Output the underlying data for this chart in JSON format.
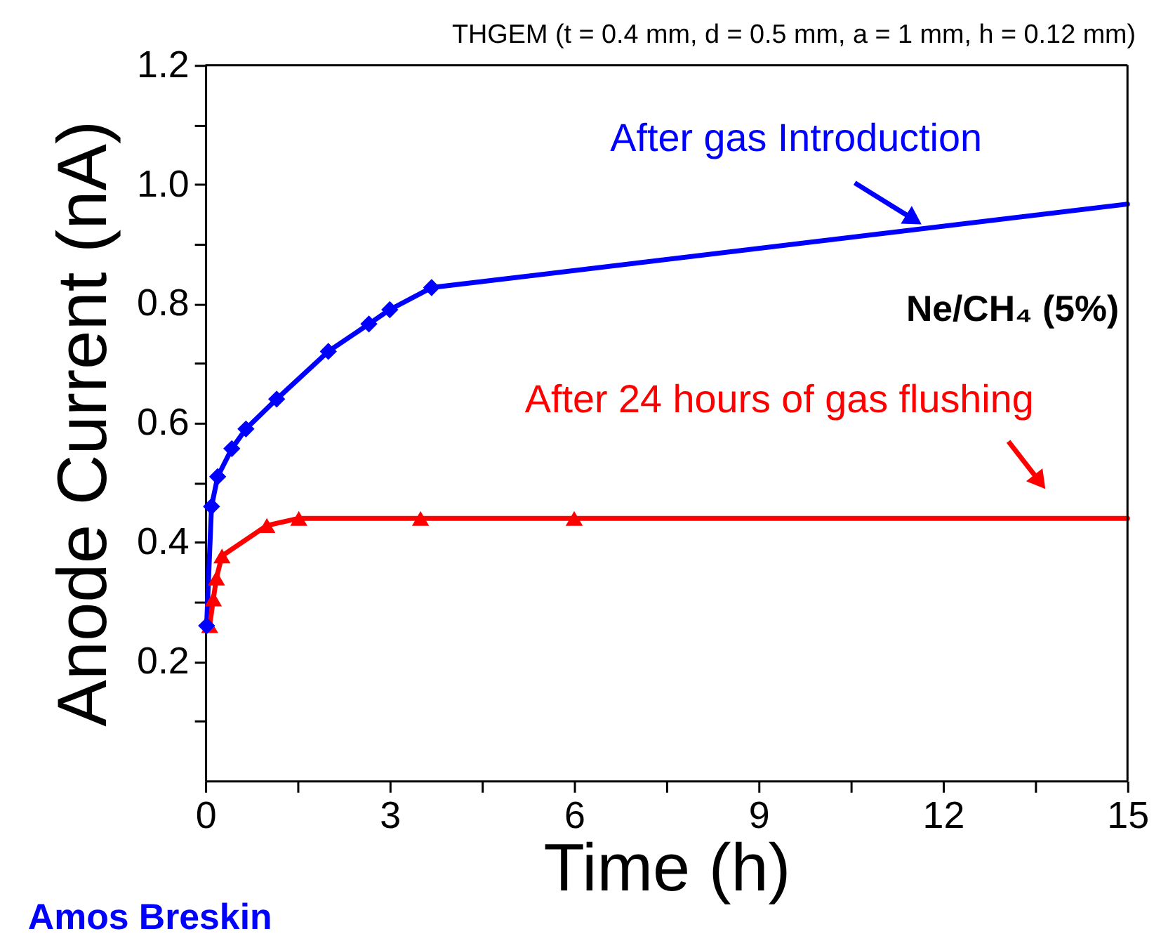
{
  "chart_data": {
    "type": "line",
    "title": "THGEM (t = 0.4 mm, d = 0.5 mm, a = 1 mm, h = 0.12 mm)",
    "xlabel": "Time (h)",
    "ylabel": "Anode Current (nA)",
    "series": [
      {
        "color": "#0000ff",
        "marker": "diamond",
        "x": [
          0.02,
          0.1,
          0.2,
          0.43,
          0.66,
          1.16,
          2.0,
          2.66,
          3.0,
          3.68
        ],
        "values": [
          0.26,
          0.46,
          0.51,
          0.557,
          0.59,
          0.64,
          0.72,
          0.766,
          0.79,
          0.827
        ]
      },
      {
        "color": "#0000ff",
        "marker": "none",
        "x": [
          3.68,
          15
        ],
        "values": [
          0.827,
          0.967
        ]
      },
      {
        "color": "#ff0000",
        "marker": "triangle",
        "x": [
          0.07,
          0.13,
          0.18,
          0.27,
          1.0,
          1.52,
          3.5,
          6.0
        ],
        "values": [
          0.26,
          0.305,
          0.34,
          0.377,
          0.428,
          0.44,
          0.44,
          0.44
        ]
      },
      {
        "color": "#ff0000",
        "marker": "none",
        "x": [
          6.0,
          15
        ],
        "values": [
          0.44,
          0.44
        ]
      }
    ],
    "annotations": [
      {
        "text": "After gas Introduction",
        "x": 11.7,
        "y": 0.93
      },
      {
        "text": "After 24 hours of gas flushing",
        "x": 13.7,
        "y": 0.44
      },
      "Ne/CH₄ (5%)",
      "Amos Breskin"
    ],
    "xlim": [
      0,
      15
    ],
    "ylim": [
      0,
      1.2
    ],
    "xticks": [
      0,
      {
        "value": 1.5,
        "label": null
      },
      3,
      {
        "value": 4.5,
        "label": null
      },
      6,
      {
        "value": 7.5,
        "label": null
      },
      9,
      {
        "value": 10.5,
        "label": null
      },
      12,
      {
        "value": 13.5,
        "label": null
      },
      15
    ],
    "yticks": [
      {
        "value": 0.1,
        "label": null
      },
      0.2,
      {
        "value": 0.3,
        "label": null
      },
      0.4,
      {
        "value": 0.5,
        "label": null
      },
      0.6,
      {
        "value": 0.7,
        "label": null
      },
      0.8,
      {
        "value": 0.9,
        "label": null
      },
      {
        "value": 1,
        "label": "1.0"
      },
      {
        "value": 1.1,
        "label": null
      },
      1.2
    ],
    "grid": false
  }
}
